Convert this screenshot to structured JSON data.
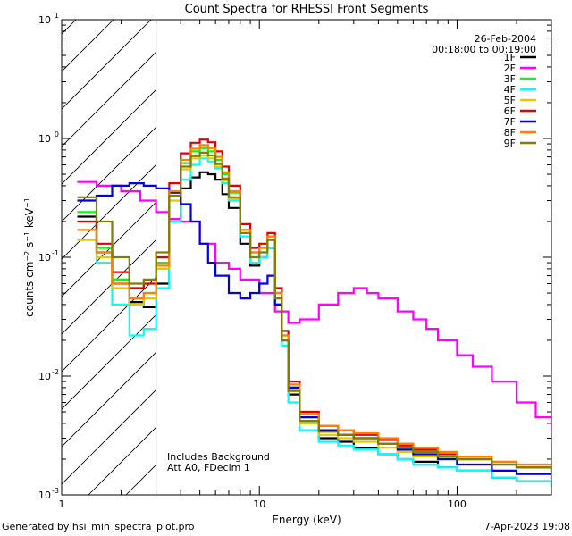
{
  "chart_data": {
    "type": "line",
    "title": "Count Spectra for RHESSI Front Segments",
    "xlabel": "Energy (keV)",
    "ylabel_html": "counts cm⁻² s⁻¹ keV⁻¹",
    "xscale": "log",
    "yscale": "log",
    "xlim": [
      1,
      300
    ],
    "ylim": [
      0.001,
      10
    ],
    "x_ticks": [
      {
        "value": 1,
        "label": "1"
      },
      {
        "value": 10,
        "label": "10"
      },
      {
        "value": 100,
        "label": "100"
      }
    ],
    "y_ticks": [
      {
        "value": 0.001,
        "base": "10",
        "exp": "-3"
      },
      {
        "value": 0.01,
        "base": "10",
        "exp": "-2"
      },
      {
        "value": 0.1,
        "base": "10",
        "exp": "-1"
      },
      {
        "value": 1,
        "base": "10",
        "exp": "0"
      },
      {
        "value": 10,
        "base": "10",
        "exp": "1"
      }
    ],
    "excluded_region": [
      1,
      3
    ],
    "info_top_right": [
      "26-Feb-2004",
      "00:18:00 to 00:19:00"
    ],
    "annotation": [
      "Includes Background",
      "Att A0, FDecim 1"
    ],
    "series": [
      {
        "name": "1F",
        "color": "#000000",
        "points": [
          [
            1.2,
            0.22
          ],
          [
            1.5,
            0.11
          ],
          [
            1.8,
            0.06
          ],
          [
            2.2,
            0.042
          ],
          [
            2.6,
            0.038
          ],
          [
            3,
            0.06
          ],
          [
            3.5,
            0.2
          ],
          [
            4,
            0.38
          ],
          [
            4.5,
            0.47
          ],
          [
            5,
            0.52
          ],
          [
            5.5,
            0.5
          ],
          [
            6,
            0.45
          ],
          [
            6.5,
            0.34
          ],
          [
            7,
            0.26
          ],
          [
            8,
            0.13
          ],
          [
            9,
            0.085
          ],
          [
            10,
            0.1
          ],
          [
            11,
            0.12
          ],
          [
            12,
            0.04
          ],
          [
            13,
            0.02
          ],
          [
            14,
            0.007
          ],
          [
            16,
            0.004
          ],
          [
            20,
            0.003
          ],
          [
            25,
            0.0028
          ],
          [
            30,
            0.0025
          ],
          [
            40,
            0.0022
          ],
          [
            50,
            0.002
          ],
          [
            60,
            0.0019
          ],
          [
            80,
            0.0017
          ],
          [
            100,
            0.0016
          ],
          [
            150,
            0.0014
          ],
          [
            200,
            0.0013
          ],
          [
            300,
            0.0012
          ]
        ]
      },
      {
        "name": "2F",
        "color": "#ff00ff",
        "points": [
          [
            1.2,
            0.43
          ],
          [
            1.5,
            0.4
          ],
          [
            2,
            0.36
          ],
          [
            2.5,
            0.3
          ],
          [
            3,
            0.24
          ],
          [
            3.5,
            0.21
          ],
          [
            4,
            0.2
          ],
          [
            5,
            0.13
          ],
          [
            6,
            0.09
          ],
          [
            7,
            0.08
          ],
          [
            8,
            0.065
          ],
          [
            10,
            0.05
          ],
          [
            12,
            0.035
          ],
          [
            14,
            0.028
          ],
          [
            16,
            0.03
          ],
          [
            20,
            0.04
          ],
          [
            25,
            0.05
          ],
          [
            30,
            0.055
          ],
          [
            35,
            0.05
          ],
          [
            40,
            0.045
          ],
          [
            50,
            0.035
          ],
          [
            60,
            0.03
          ],
          [
            70,
            0.025
          ],
          [
            80,
            0.02
          ],
          [
            100,
            0.015
          ],
          [
            120,
            0.012
          ],
          [
            150,
            0.009
          ],
          [
            200,
            0.006
          ],
          [
            250,
            0.0045
          ],
          [
            300,
            0.0035
          ]
        ]
      },
      {
        "name": "3F",
        "color": "#00ff00",
        "points": [
          [
            1.2,
            0.24
          ],
          [
            1.5,
            0.12
          ],
          [
            1.8,
            0.065
          ],
          [
            2.2,
            0.045
          ],
          [
            2.6,
            0.05
          ],
          [
            3,
            0.09
          ],
          [
            3.5,
            0.35
          ],
          [
            4,
            0.62
          ],
          [
            4.5,
            0.78
          ],
          [
            5,
            0.83
          ],
          [
            5.5,
            0.78
          ],
          [
            6,
            0.66
          ],
          [
            6.5,
            0.5
          ],
          [
            7,
            0.35
          ],
          [
            8,
            0.17
          ],
          [
            9,
            0.11
          ],
          [
            10,
            0.12
          ],
          [
            11,
            0.15
          ],
          [
            12,
            0.05
          ],
          [
            13,
            0.022
          ],
          [
            14,
            0.008
          ],
          [
            16,
            0.0045
          ],
          [
            20,
            0.0035
          ],
          [
            25,
            0.0032
          ],
          [
            30,
            0.003
          ],
          [
            40,
            0.0027
          ],
          [
            50,
            0.0025
          ],
          [
            60,
            0.0023
          ],
          [
            80,
            0.0021
          ],
          [
            100,
            0.002
          ],
          [
            150,
            0.0018
          ],
          [
            200,
            0.0017
          ],
          [
            300,
            0.0016
          ]
        ]
      },
      {
        "name": "4F",
        "color": "#00ffff",
        "points": [
          [
            1.2,
            0.2
          ],
          [
            1.5,
            0.09
          ],
          [
            1.8,
            0.04
          ],
          [
            2.2,
            0.022
          ],
          [
            2.6,
            0.025
          ],
          [
            3,
            0.055
          ],
          [
            3.5,
            0.2
          ],
          [
            4,
            0.45
          ],
          [
            4.5,
            0.6
          ],
          [
            5,
            0.68
          ],
          [
            5.5,
            0.64
          ],
          [
            6,
            0.56
          ],
          [
            6.5,
            0.42
          ],
          [
            7,
            0.3
          ],
          [
            8,
            0.15
          ],
          [
            9,
            0.09
          ],
          [
            10,
            0.1
          ],
          [
            11,
            0.12
          ],
          [
            12,
            0.04
          ],
          [
            13,
            0.018
          ],
          [
            14,
            0.006
          ],
          [
            16,
            0.0035
          ],
          [
            20,
            0.0028
          ],
          [
            25,
            0.0026
          ],
          [
            30,
            0.0024
          ],
          [
            40,
            0.0022
          ],
          [
            50,
            0.002
          ],
          [
            60,
            0.0018
          ],
          [
            80,
            0.0017
          ],
          [
            100,
            0.0016
          ],
          [
            150,
            0.0014
          ],
          [
            200,
            0.0013
          ],
          [
            300,
            0.0012
          ]
        ]
      },
      {
        "name": "5F",
        "color": "#e6c700",
        "points": [
          [
            1.2,
            0.14
          ],
          [
            1.5,
            0.1
          ],
          [
            1.8,
            0.055
          ],
          [
            2.2,
            0.04
          ],
          [
            2.6,
            0.045
          ],
          [
            3,
            0.08
          ],
          [
            3.5,
            0.3
          ],
          [
            4,
            0.55
          ],
          [
            4.5,
            0.68
          ],
          [
            5,
            0.72
          ],
          [
            5.5,
            0.68
          ],
          [
            6,
            0.58
          ],
          [
            6.5,
            0.44
          ],
          [
            7,
            0.31
          ],
          [
            8,
            0.16
          ],
          [
            9,
            0.1
          ],
          [
            10,
            0.11
          ],
          [
            11,
            0.14
          ],
          [
            12,
            0.045
          ],
          [
            13,
            0.02
          ],
          [
            14,
            0.0075
          ],
          [
            16,
            0.004
          ],
          [
            20,
            0.0032
          ],
          [
            25,
            0.003
          ],
          [
            30,
            0.0028
          ],
          [
            40,
            0.0025
          ],
          [
            50,
            0.0023
          ],
          [
            60,
            0.0021
          ],
          [
            80,
            0.002
          ],
          [
            100,
            0.0018
          ],
          [
            150,
            0.0016
          ],
          [
            200,
            0.0015
          ],
          [
            300,
            0.0014
          ]
        ]
      },
      {
        "name": "6F",
        "color": "#e00000",
        "points": [
          [
            1.2,
            0.2
          ],
          [
            1.5,
            0.13
          ],
          [
            1.8,
            0.075
          ],
          [
            2.2,
            0.055
          ],
          [
            2.6,
            0.06
          ],
          [
            3,
            0.1
          ],
          [
            3.5,
            0.42
          ],
          [
            4,
            0.75
          ],
          [
            4.5,
            0.92
          ],
          [
            5,
            0.98
          ],
          [
            5.5,
            0.93
          ],
          [
            6,
            0.78
          ],
          [
            6.5,
            0.58
          ],
          [
            7,
            0.4
          ],
          [
            8,
            0.19
          ],
          [
            9,
            0.12
          ],
          [
            10,
            0.13
          ],
          [
            11,
            0.16
          ],
          [
            12,
            0.055
          ],
          [
            13,
            0.024
          ],
          [
            14,
            0.009
          ],
          [
            16,
            0.005
          ],
          [
            20,
            0.0038
          ],
          [
            25,
            0.0035
          ],
          [
            30,
            0.0032
          ],
          [
            40,
            0.0029
          ],
          [
            50,
            0.0026
          ],
          [
            60,
            0.0024
          ],
          [
            80,
            0.0022
          ],
          [
            100,
            0.002
          ],
          [
            150,
            0.0018
          ],
          [
            200,
            0.0017
          ],
          [
            300,
            0.0016
          ]
        ]
      },
      {
        "name": "7F",
        "color": "#0000e6",
        "points": [
          [
            1.2,
            0.3
          ],
          [
            1.5,
            0.33
          ],
          [
            1.8,
            0.4
          ],
          [
            2.2,
            0.42
          ],
          [
            2.6,
            0.4
          ],
          [
            3,
            0.38
          ],
          [
            3.5,
            0.35
          ],
          [
            4,
            0.28
          ],
          [
            4.5,
            0.2
          ],
          [
            5,
            0.13
          ],
          [
            5.5,
            0.09
          ],
          [
            6,
            0.07
          ],
          [
            7,
            0.05
          ],
          [
            8,
            0.045
          ],
          [
            9,
            0.05
          ],
          [
            10,
            0.06
          ],
          [
            11,
            0.07
          ],
          [
            12,
            0.04
          ],
          [
            13,
            0.02
          ],
          [
            14,
            0.008
          ],
          [
            16,
            0.0045
          ],
          [
            20,
            0.0035
          ],
          [
            25,
            0.0032
          ],
          [
            30,
            0.003
          ],
          [
            40,
            0.0027
          ],
          [
            50,
            0.0024
          ],
          [
            60,
            0.0022
          ],
          [
            80,
            0.002
          ],
          [
            100,
            0.0018
          ],
          [
            150,
            0.0016
          ],
          [
            200,
            0.0015
          ],
          [
            300,
            0.0014
          ]
        ]
      },
      {
        "name": "8F",
        "color": "#ff7f00",
        "points": [
          [
            1.2,
            0.17
          ],
          [
            1.5,
            0.11
          ],
          [
            1.8,
            0.06
          ],
          [
            2.2,
            0.045
          ],
          [
            2.6,
            0.05
          ],
          [
            3,
            0.085
          ],
          [
            3.5,
            0.36
          ],
          [
            4,
            0.66
          ],
          [
            4.5,
            0.82
          ],
          [
            5,
            0.88
          ],
          [
            5.5,
            0.83
          ],
          [
            6,
            0.7
          ],
          [
            6.5,
            0.52
          ],
          [
            7,
            0.36
          ],
          [
            8,
            0.17
          ],
          [
            9,
            0.11
          ],
          [
            10,
            0.12
          ],
          [
            11,
            0.15
          ],
          [
            12,
            0.05
          ],
          [
            13,
            0.022
          ],
          [
            14,
            0.0085
          ],
          [
            16,
            0.0048
          ],
          [
            20,
            0.0038
          ],
          [
            25,
            0.0035
          ],
          [
            30,
            0.0033
          ],
          [
            40,
            0.003
          ],
          [
            50,
            0.0027
          ],
          [
            60,
            0.0025
          ],
          [
            80,
            0.0023
          ],
          [
            100,
            0.0021
          ],
          [
            150,
            0.0019
          ],
          [
            200,
            0.0018
          ],
          [
            300,
            0.0017
          ]
        ]
      },
      {
        "name": "9F",
        "color": "#7f7f00",
        "points": [
          [
            1.2,
            0.32
          ],
          [
            1.5,
            0.2
          ],
          [
            1.8,
            0.1
          ],
          [
            2.2,
            0.06
          ],
          [
            2.6,
            0.065
          ],
          [
            3,
            0.11
          ],
          [
            3.5,
            0.33
          ],
          [
            4,
            0.58
          ],
          [
            4.5,
            0.71
          ],
          [
            5,
            0.76
          ],
          [
            5.5,
            0.72
          ],
          [
            6,
            0.61
          ],
          [
            6.5,
            0.46
          ],
          [
            7,
            0.32
          ],
          [
            8,
            0.16
          ],
          [
            9,
            0.1
          ],
          [
            10,
            0.11
          ],
          [
            11,
            0.14
          ],
          [
            12,
            0.045
          ],
          [
            13,
            0.02
          ],
          [
            14,
            0.0075
          ],
          [
            16,
            0.0042
          ],
          [
            20,
            0.0034
          ],
          [
            25,
            0.0032
          ],
          [
            30,
            0.003
          ],
          [
            40,
            0.0027
          ],
          [
            50,
            0.0025
          ],
          [
            60,
            0.0023
          ],
          [
            80,
            0.0021
          ],
          [
            100,
            0.002
          ],
          [
            150,
            0.0018
          ],
          [
            200,
            0.0017
          ],
          [
            300,
            0.0016
          ]
        ]
      }
    ]
  },
  "footer": {
    "generated_by": "Generated by hsi_min_spectra_plot.pro",
    "timestamp": "7-Apr-2023 19:08"
  }
}
